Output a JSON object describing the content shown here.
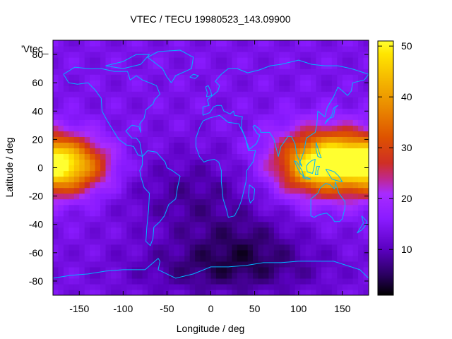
{
  "chart_data": {
    "type": "heatmap",
    "title": "VTEC / TECU 19980523_143.09900",
    "xlabel": "Longitude / deg",
    "ylabel": "Latitude / deg",
    "key_label": "'Vtec_",
    "xlim": [
      -180,
      180
    ],
    "ylim": [
      -90,
      90
    ],
    "x_ticks": [
      -150,
      -100,
      -50,
      0,
      50,
      100,
      150
    ],
    "y_ticks": [
      -80,
      -60,
      -40,
      -20,
      0,
      20,
      40,
      60,
      80
    ],
    "colorbar": {
      "min": 1,
      "max": 51,
      "ticks": [
        10,
        20,
        30,
        40,
        50
      ]
    },
    "colormap": [
      "#000000",
      "#3a007a",
      "#6a00d9",
      "#9a1fff",
      "#7a2cff",
      "#b52bff",
      "#c8209a",
      "#d32f1d",
      "#e46a00",
      "#f2a800",
      "#ffe000",
      "#ffff2a"
    ],
    "grid": false,
    "overlay": "coastlines",
    "overlay_color": "#00b4ff",
    "features": [
      {
        "lon": -160,
        "lat": 2,
        "peak": 44,
        "desc": "equatorial anomaly, Pacific"
      },
      {
        "lon": 130,
        "lat": 5,
        "peak": 51,
        "desc": "equatorial anomaly, SE Asia"
      },
      {
        "lon": 30,
        "lat": -75,
        "peak": 2,
        "desc": "minimum, Antarctic"
      }
    ]
  }
}
